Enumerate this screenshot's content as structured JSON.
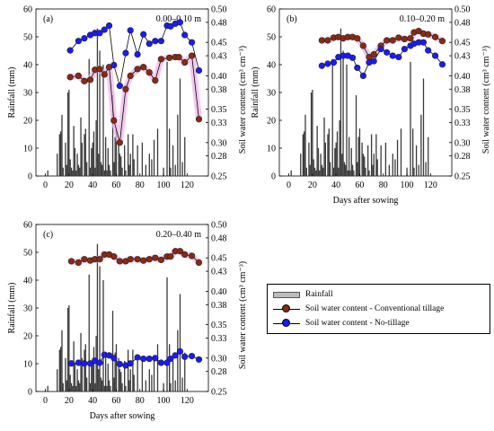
{
  "chart_data": [
    {
      "type": "bar+line",
      "panel_label": "(a)",
      "depth_label": "0.00–0.10 m",
      "xlabel": "",
      "ylabel": "Rainfall (mm)",
      "y2label": "Soil water content (cm³ cm⁻³)",
      "xlim": [
        -8,
        138
      ],
      "ylim": [
        0,
        60
      ],
      "y2lim": [
        0.25,
        0.5
      ],
      "xticks": [
        "0",
        "20",
        "40",
        "60",
        "80",
        "100",
        "120"
      ],
      "yticks": [
        "0",
        "10",
        "20",
        "30",
        "40",
        "50",
        "60"
      ],
      "y2ticks": [
        "0.25",
        "0.28",
        "0.30",
        "0.33",
        "0.35",
        "0.38",
        "0.40",
        "0.43",
        "0.45",
        "0.48",
        "0.50"
      ],
      "rainfall": {
        "name": "Rainfall",
        "x": [
          2,
          10,
          12,
          13,
          14,
          15,
          17,
          18,
          19,
          20,
          21,
          22,
          23,
          24,
          25,
          26,
          27,
          28,
          29,
          30,
          31,
          33,
          34,
          35,
          37,
          38,
          39,
          40,
          41,
          42,
          43,
          44,
          45,
          46,
          47,
          48,
          49,
          50,
          51,
          52,
          53,
          54,
          55,
          57,
          58,
          59,
          60,
          62,
          63,
          64,
          65,
          67,
          68,
          70,
          71,
          72,
          74,
          75,
          78,
          82,
          85,
          88,
          90,
          92,
          95,
          100,
          103,
          105,
          106,
          108,
          110,
          112,
          114,
          116,
          118
        ],
        "y": [
          2,
          8,
          15,
          16,
          22,
          3,
          12,
          4,
          30,
          31,
          6,
          3,
          2,
          18,
          10,
          2,
          8,
          4,
          3,
          21,
          12,
          15,
          17,
          5,
          42,
          3,
          10,
          12,
          16,
          3,
          20,
          53,
          8,
          45,
          5,
          4,
          40,
          2,
          14,
          2,
          10,
          4,
          2,
          29,
          5,
          14,
          17,
          12,
          8,
          7,
          3,
          11,
          2,
          15,
          4,
          8,
          15,
          6,
          11,
          12,
          4,
          8,
          6,
          13,
          17,
          3,
          41,
          17,
          3,
          11,
          4,
          22,
          35,
          5,
          14
        ]
      },
      "series": [
        {
          "name": "Soil water content - Conventional tillage",
          "x": [
            21,
            28,
            33,
            38,
            42,
            46,
            50,
            54,
            58,
            63,
            68,
            72,
            78,
            83,
            88,
            93,
            98,
            105,
            110,
            113,
            118,
            124,
            130
          ],
          "y": [
            0.398,
            0.4,
            0.392,
            0.394,
            0.409,
            0.41,
            0.402,
            0.413,
            0.333,
            0.3,
            0.38,
            0.4,
            0.41,
            0.413,
            0.405,
            0.393,
            0.425,
            0.427,
            0.428,
            0.428,
            0.42,
            0.43,
            0.335
          ]
        },
        {
          "name": "Soil water content - No-tillage",
          "x": [
            21,
            28,
            33,
            38,
            42,
            46,
            50,
            54,
            58,
            63,
            68,
            72,
            78,
            83,
            88,
            93,
            98,
            103,
            106,
            110,
            114,
            118,
            124,
            130
          ],
          "y": [
            0.438,
            0.452,
            0.456,
            0.461,
            0.464,
            0.464,
            0.469,
            0.475,
            0.416,
            0.385,
            0.434,
            0.468,
            0.432,
            0.462,
            0.448,
            0.452,
            0.452,
            0.475,
            0.474,
            0.478,
            0.48,
            0.461,
            0.45,
            0.408
          ]
        }
      ]
    },
    {
      "type": "bar+line",
      "panel_label": "(b)",
      "depth_label": "0.10–0.20 m",
      "xlabel": "Days after sowing",
      "ylabel": "Rainfall (mm)",
      "y2label": "Soil water content (cm³ cm⁻³)",
      "xlim": [
        -8,
        138
      ],
      "ylim": [
        0,
        60
      ],
      "y2lim": [
        0.25,
        0.5
      ],
      "xticks": [
        "0",
        "20",
        "40",
        "60",
        "80",
        "100",
        "120"
      ],
      "yticks": [
        "0",
        "10",
        "20",
        "30",
        "40",
        "50",
        "60"
      ],
      "y2ticks": [
        "0.25",
        "0.28",
        "0.30",
        "0.33",
        "0.35",
        "0.38",
        "0.40",
        "0.43",
        "0.45",
        "0.48",
        "0.50"
      ],
      "rainfall": {
        "name": "Rainfall",
        "x": [
          2,
          10,
          12,
          13,
          14,
          15,
          17,
          18,
          19,
          20,
          21,
          22,
          23,
          24,
          25,
          26,
          27,
          28,
          29,
          30,
          31,
          33,
          34,
          35,
          37,
          38,
          39,
          40,
          41,
          42,
          43,
          44,
          45,
          46,
          47,
          48,
          49,
          50,
          51,
          52,
          53,
          54,
          55,
          57,
          58,
          59,
          60,
          62,
          63,
          64,
          65,
          67,
          68,
          70,
          71,
          72,
          74,
          75,
          78,
          82,
          85,
          88,
          90,
          92,
          95,
          100,
          103,
          105,
          106,
          108,
          110,
          112,
          114,
          116,
          118
        ],
        "y": [
          2,
          8,
          15,
          16,
          22,
          3,
          12,
          4,
          30,
          31,
          6,
          3,
          2,
          18,
          10,
          2,
          8,
          4,
          3,
          21,
          12,
          15,
          17,
          5,
          42,
          3,
          10,
          12,
          16,
          3,
          20,
          53,
          8,
          45,
          5,
          4,
          40,
          2,
          14,
          2,
          10,
          4,
          2,
          29,
          5,
          14,
          17,
          12,
          8,
          7,
          3,
          11,
          2,
          15,
          4,
          8,
          15,
          6,
          11,
          12,
          4,
          8,
          6,
          13,
          17,
          3,
          41,
          17,
          3,
          11,
          4,
          22,
          35,
          5,
          14
        ]
      },
      "series": [
        {
          "name": "Soil water content - Conventional tillage",
          "x": [
            28,
            33,
            38,
            42,
            46,
            50,
            54,
            58,
            63,
            68,
            72,
            78,
            83,
            88,
            93,
            98,
            103,
            106,
            110,
            114,
            118,
            124,
            130
          ],
          "y": [
            0.453,
            0.453,
            0.457,
            0.458,
            0.456,
            0.458,
            0.458,
            0.456,
            0.445,
            0.428,
            0.432,
            0.445,
            0.453,
            0.453,
            0.457,
            0.455,
            0.456,
            0.465,
            0.467,
            0.463,
            0.462,
            0.458,
            0.452
          ]
        },
        {
          "name": "Soil water content - No-tillage",
          "x": [
            28,
            33,
            38,
            42,
            46,
            50,
            54,
            58,
            63,
            68,
            72,
            78,
            83,
            88,
            93,
            98,
            103,
            106,
            110,
            114,
            118,
            124,
            130
          ],
          "y": [
            0.415,
            0.418,
            0.42,
            0.428,
            0.43,
            0.43,
            0.427,
            0.412,
            0.4,
            0.42,
            0.422,
            0.44,
            0.435,
            0.43,
            0.428,
            0.44,
            0.445,
            0.448,
            0.45,
            0.45,
            0.438,
            0.43,
            0.417
          ]
        }
      ]
    },
    {
      "type": "bar+line",
      "panel_label": "(c)",
      "depth_label": "0.20–0.40 m",
      "xlabel": "Days after sowing",
      "ylabel": "Rainfall (mm)",
      "y2label": "Soil water content (cm³ cm⁻³)",
      "xlim": [
        -8,
        138
      ],
      "ylim": [
        0,
        60
      ],
      "y2lim": [
        0.25,
        0.5
      ],
      "xticks": [
        "0",
        "20",
        "40",
        "60",
        "80",
        "100",
        "120"
      ],
      "yticks": [
        "0",
        "10",
        "20",
        "30",
        "40",
        "50",
        "60"
      ],
      "y2ticks": [
        "0.25",
        "0.28",
        "0.30",
        "0.33",
        "0.35",
        "0.38",
        "0.40",
        "0.43",
        "0.45",
        "0.48",
        "0.50"
      ],
      "rainfall": {
        "name": "Rainfall",
        "x": [
          2,
          10,
          12,
          13,
          14,
          15,
          17,
          18,
          19,
          20,
          21,
          22,
          23,
          24,
          25,
          26,
          27,
          28,
          29,
          30,
          31,
          33,
          34,
          35,
          37,
          38,
          39,
          40,
          41,
          42,
          43,
          44,
          45,
          46,
          47,
          48,
          49,
          50,
          51,
          52,
          53,
          54,
          55,
          57,
          58,
          59,
          60,
          62,
          63,
          64,
          65,
          67,
          68,
          70,
          71,
          72,
          74,
          75,
          78,
          82,
          85,
          88,
          90,
          92,
          95,
          100,
          103,
          105,
          106,
          108,
          110,
          112,
          114,
          116,
          118
        ],
        "y": [
          2,
          8,
          15,
          16,
          22,
          3,
          12,
          4,
          30,
          31,
          6,
          3,
          2,
          18,
          10,
          2,
          8,
          4,
          3,
          21,
          12,
          15,
          17,
          5,
          42,
          3,
          10,
          12,
          16,
          3,
          20,
          53,
          8,
          45,
          5,
          4,
          40,
          2,
          14,
          2,
          10,
          4,
          2,
          29,
          5,
          14,
          17,
          12,
          8,
          7,
          3,
          11,
          2,
          15,
          4,
          8,
          15,
          6,
          11,
          12,
          4,
          8,
          6,
          13,
          17,
          3,
          41,
          17,
          3,
          11,
          4,
          22,
          35,
          5,
          14
        ]
      },
      "series": [
        {
          "name": "Soil water content - Conventional tillage",
          "x": [
            22,
            28,
            33,
            38,
            42,
            46,
            50,
            54,
            58,
            63,
            68,
            72,
            78,
            83,
            88,
            93,
            98,
            103,
            106,
            110,
            114,
            118,
            124,
            130
          ],
          "y": [
            0.445,
            0.443,
            0.448,
            0.446,
            0.448,
            0.448,
            0.455,
            0.455,
            0.452,
            0.445,
            0.445,
            0.448,
            0.448,
            0.446,
            0.448,
            0.45,
            0.447,
            0.452,
            0.452,
            0.46,
            0.46,
            0.455,
            0.453,
            0.443
          ]
        },
        {
          "name": "Soil water content - No-tillage",
          "x": [
            22,
            28,
            33,
            38,
            42,
            46,
            50,
            54,
            58,
            63,
            68,
            72,
            78,
            83,
            88,
            93,
            98,
            103,
            106,
            110,
            114,
            118,
            124,
            130
          ],
          "y": [
            0.292,
            0.293,
            0.292,
            0.292,
            0.296,
            0.293,
            0.305,
            0.304,
            0.3,
            0.291,
            0.289,
            0.292,
            0.301,
            0.299,
            0.299,
            0.3,
            0.293,
            0.293,
            0.299,
            0.304,
            0.31,
            0.302,
            0.303,
            0.298
          ]
        }
      ]
    }
  ],
  "legend": {
    "rainfall": "Rainfall",
    "ct": "Soil water content - Conventional tillage",
    "nt": "Soil  water content - No-tillage"
  },
  "colors": {
    "bar_fill": "#3a3a3a",
    "ct": "#8b2a12",
    "nt": "#1a1aff",
    "highlight": "#f2b6e8",
    "legend_bar": "#bdbdbd"
  }
}
